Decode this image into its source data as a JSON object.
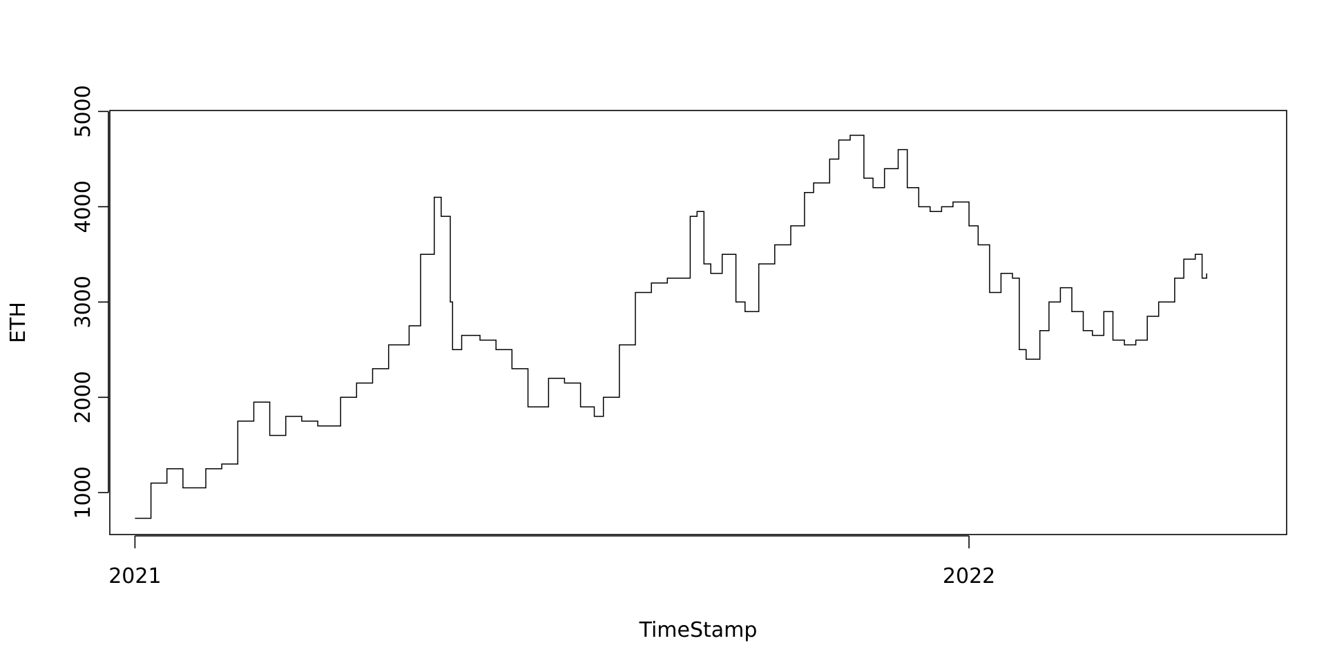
{
  "chart_data": {
    "type": "line",
    "title": "",
    "xlabel": "TimeStamp",
    "ylabel": "ETH",
    "x_ticks": [
      {
        "label": "2021",
        "date": "2021-01-01"
      },
      {
        "label": "2022",
        "date": "2022-01-01"
      }
    ],
    "y_ticks": [
      1000,
      2000,
      3000,
      4000,
      5000
    ],
    "xlim": [
      "2020-12-21",
      "2022-05-20"
    ],
    "ylim": [
      560,
      5010
    ],
    "grid": false,
    "line_style": "step",
    "series": [
      {
        "dates": [
          "2021-01-01",
          "2021-01-08",
          "2021-01-15",
          "2021-01-22",
          "2021-02-01",
          "2021-02-08",
          "2021-02-15",
          "2021-02-22",
          "2021-03-01",
          "2021-03-08",
          "2021-03-15",
          "2021-03-22",
          "2021-04-01",
          "2021-04-08",
          "2021-04-15",
          "2021-04-22",
          "2021-05-01",
          "2021-05-06",
          "2021-05-12",
          "2021-05-15",
          "2021-05-19",
          "2021-05-20",
          "2021-05-24",
          "2021-06-01",
          "2021-06-08",
          "2021-06-15",
          "2021-06-22",
          "2021-07-01",
          "2021-07-08",
          "2021-07-15",
          "2021-07-21",
          "2021-07-25",
          "2021-08-01",
          "2021-08-08",
          "2021-08-15",
          "2021-08-22",
          "2021-09-01",
          "2021-09-04",
          "2021-09-07",
          "2021-09-10",
          "2021-09-15",
          "2021-09-21",
          "2021-09-25",
          "2021-10-01",
          "2021-10-08",
          "2021-10-15",
          "2021-10-21",
          "2021-10-25",
          "2021-11-01",
          "2021-11-05",
          "2021-11-10",
          "2021-11-16",
          "2021-11-20",
          "2021-11-25",
          "2021-12-01",
          "2021-12-05",
          "2021-12-10",
          "2021-12-15",
          "2021-12-20",
          "2021-12-25",
          "2022-01-01",
          "2022-01-05",
          "2022-01-10",
          "2022-01-15",
          "2022-01-20",
          "2022-01-23",
          "2022-01-26",
          "2022-02-01",
          "2022-02-05",
          "2022-02-10",
          "2022-02-15",
          "2022-02-20",
          "2022-02-24",
          "2022-03-01",
          "2022-03-05",
          "2022-03-10",
          "2022-03-15",
          "2022-03-20",
          "2022-03-25",
          "2022-04-01",
          "2022-04-05",
          "2022-04-10",
          "2022-04-13",
          "2022-04-15"
        ],
        "values": [
          730,
          1100,
          1250,
          1050,
          1250,
          1300,
          1750,
          1950,
          1600,
          1800,
          1750,
          1700,
          2000,
          2150,
          2300,
          2550,
          2750,
          3500,
          4100,
          3900,
          3000,
          2500,
          2650,
          2600,
          2500,
          2300,
          1900,
          2200,
          2150,
          1900,
          1800,
          2000,
          2550,
          3100,
          3200,
          3250,
          3900,
          3950,
          3400,
          3300,
          3500,
          3000,
          2900,
          3400,
          3600,
          3800,
          4150,
          4250,
          4500,
          4700,
          4750,
          4300,
          4200,
          4400,
          4600,
          4200,
          4000,
          3950,
          4000,
          4050,
          3800,
          3600,
          3100,
          3300,
          3250,
          2500,
          2400,
          2700,
          3000,
          3150,
          2900,
          2700,
          2650,
          2900,
          2600,
          2550,
          2600,
          2850,
          3000,
          3250,
          3450,
          3500,
          3250,
          3300
        ]
      }
    ]
  }
}
